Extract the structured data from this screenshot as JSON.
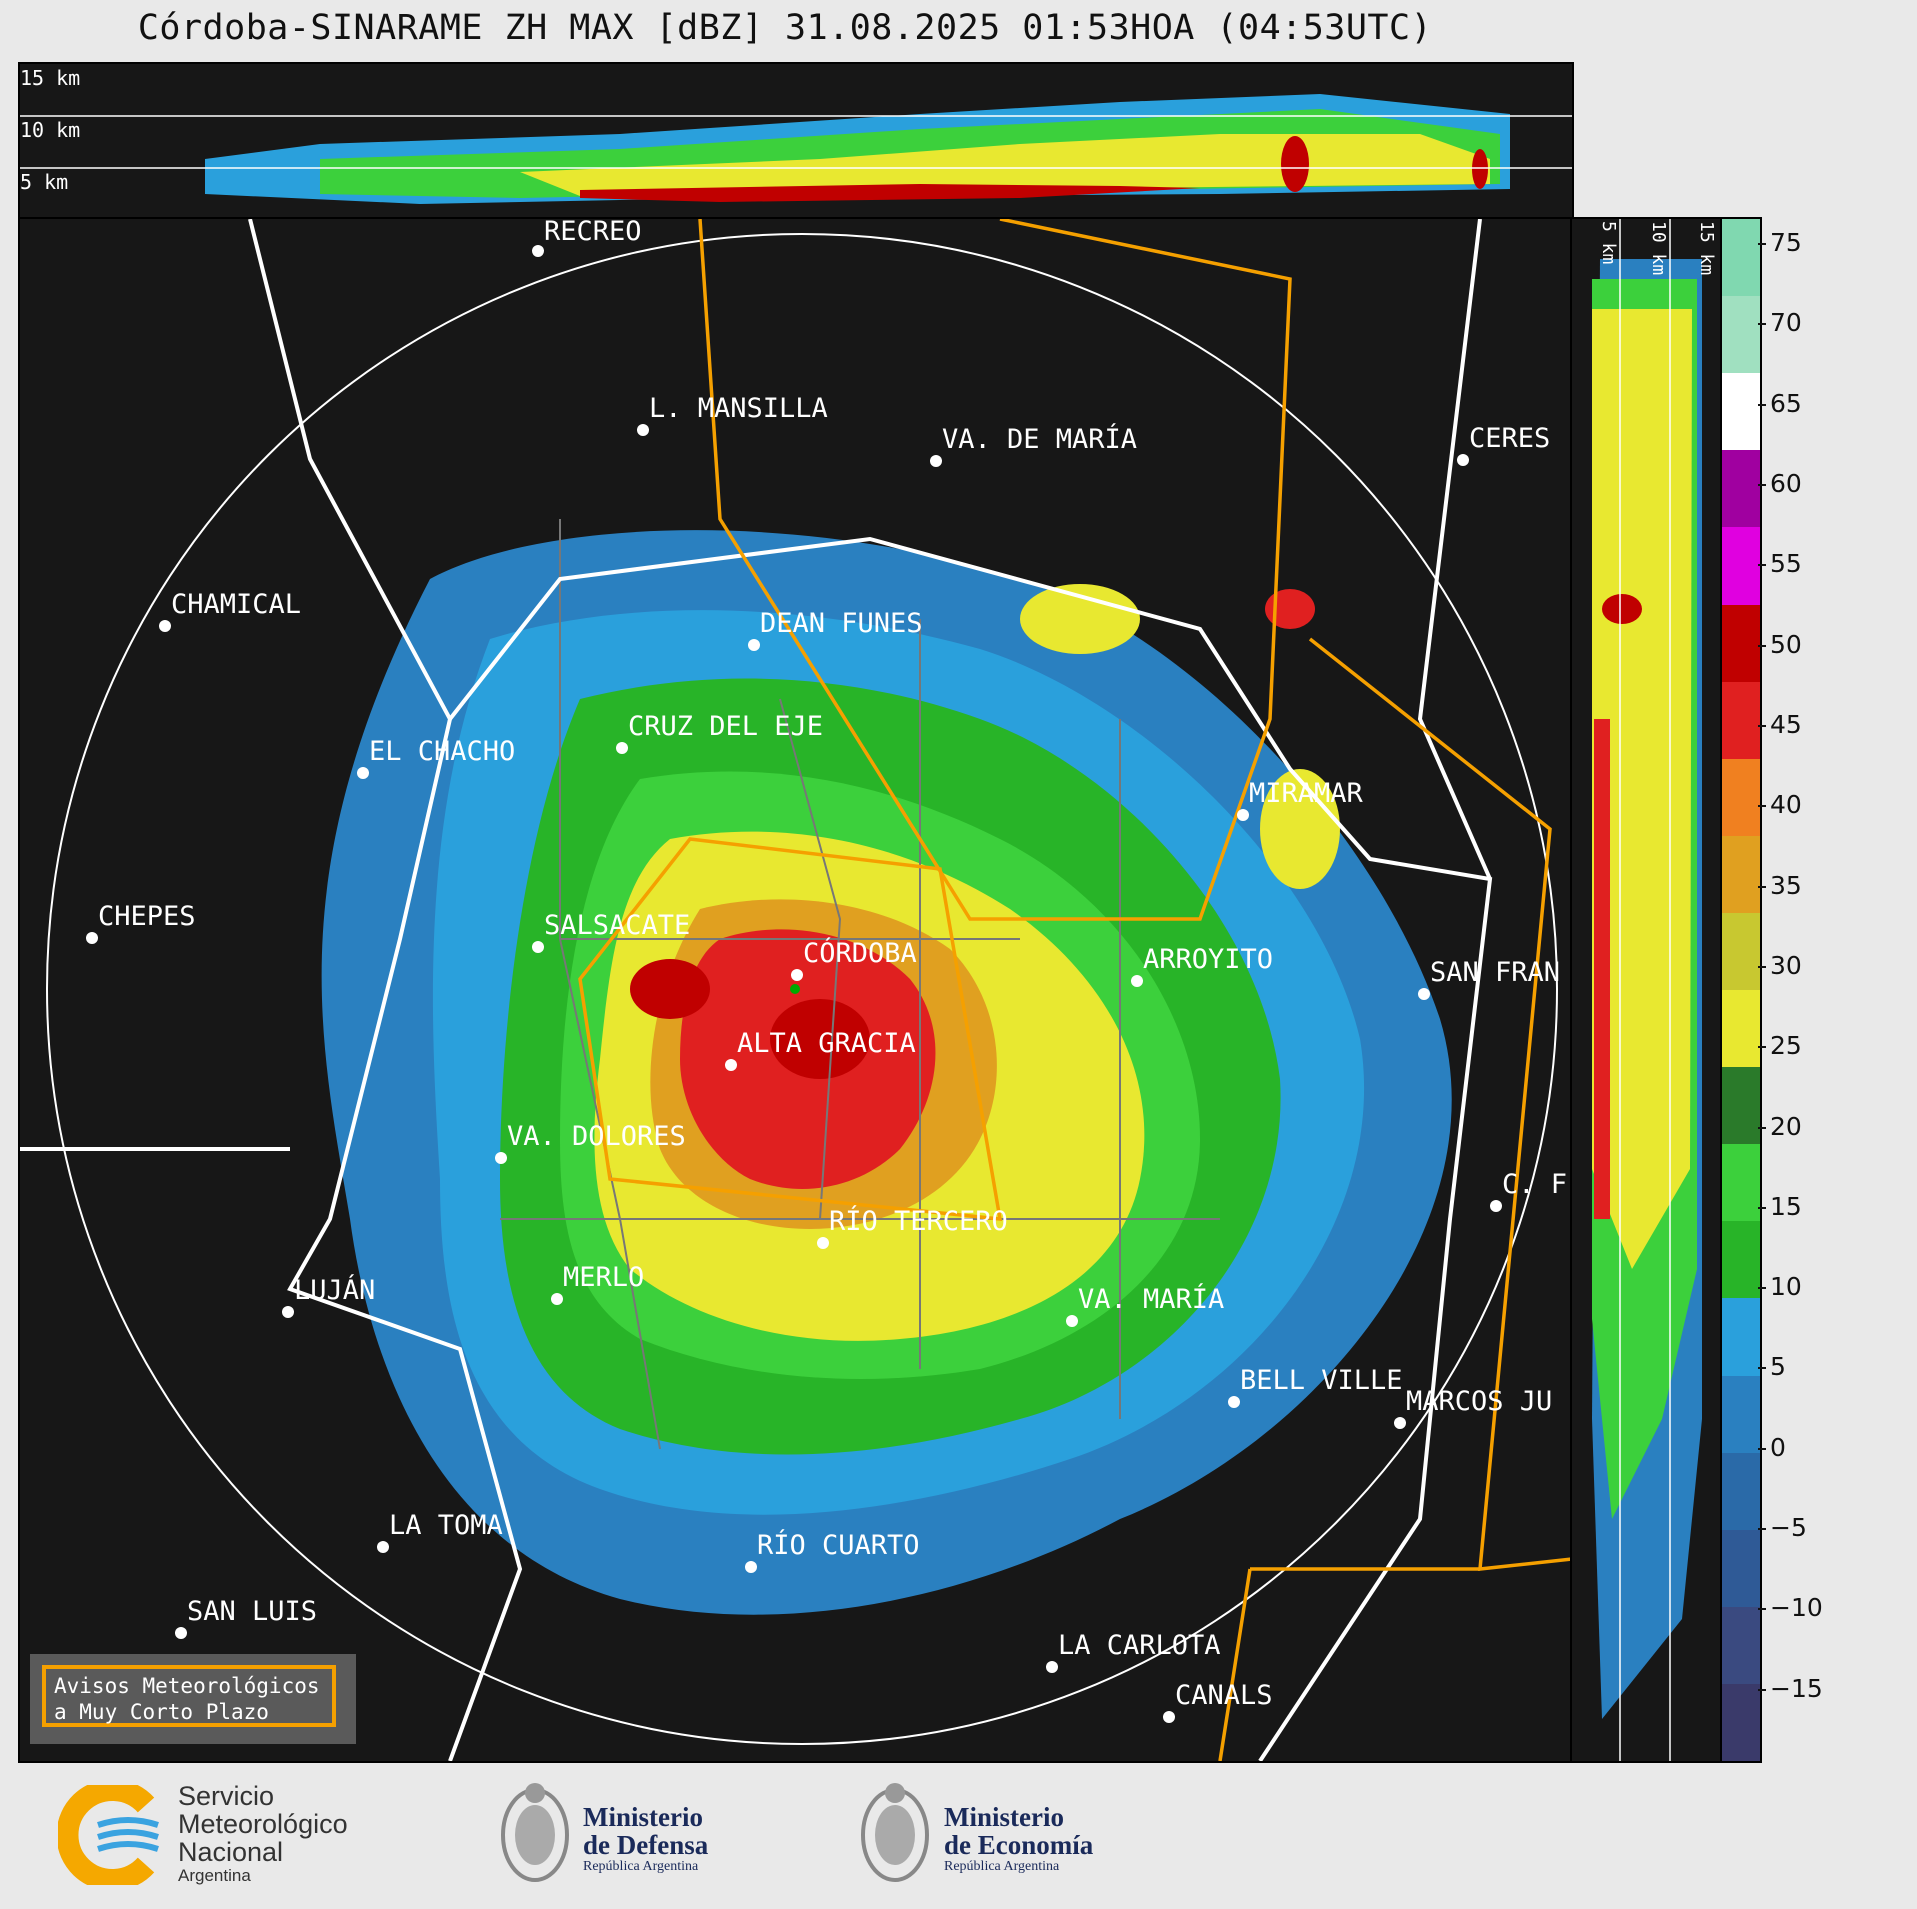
{
  "title": "Córdoba-SINARAME ZH MAX [dBZ] 31.08.2025 01:53HOA (04:53UTC)",
  "top_strip": {
    "heights": [
      "15 km",
      "10 km",
      "5 km"
    ]
  },
  "right_strip": {
    "heights": [
      "5 km",
      "10 km",
      "15 km"
    ]
  },
  "cities": [
    {
      "name": "RECREO"
    },
    {
      "name": "L. MANSILLA"
    },
    {
      "name": "VA. DE MARÍA"
    },
    {
      "name": "CERES"
    },
    {
      "name": "CHAMICAL"
    },
    {
      "name": "DEAN FUNES"
    },
    {
      "name": "CRUZ DEL EJE"
    },
    {
      "name": "EL CHACHO"
    },
    {
      "name": "MIRAMAR"
    },
    {
      "name": "CHEPES"
    },
    {
      "name": "SALSACATE"
    },
    {
      "name": "CÓRDOBA"
    },
    {
      "name": "ARROYITO"
    },
    {
      "name": "SAN FRAN"
    },
    {
      "name": "ALTA GRACIA"
    },
    {
      "name": "VA. DOLORES"
    },
    {
      "name": "C. F"
    },
    {
      "name": "RÍO TERCERO"
    },
    {
      "name": "LUJÁN"
    },
    {
      "name": "MERLO"
    },
    {
      "name": "VA. MARÍA"
    },
    {
      "name": "BELL VILLE"
    },
    {
      "name": "MARCOS JU"
    },
    {
      "name": "LA TOMA"
    },
    {
      "name": "RÍO CUARTO"
    },
    {
      "name": "SAN LUIS"
    },
    {
      "name": "LA CARLOTA"
    },
    {
      "name": "CANALS"
    }
  ],
  "avisos": {
    "line1": "Avisos Meteorológicos",
    "line2": "a Muy Corto Plazo"
  },
  "colorbar": {
    "ticks": [
      "75",
      "70",
      "65",
      "60",
      "55",
      "50",
      "45",
      "40",
      "35",
      "30",
      "25",
      "20",
      "15",
      "10",
      "5",
      "0",
      "−5",
      "−10",
      "−15"
    ],
    "colors": [
      "#3a3a6a",
      "#3a4a80",
      "#2f5a96",
      "#2a6aa8",
      "#2a80c0",
      "#2aa0dc",
      "#28b428",
      "#3cd03c",
      "#2a7a2a",
      "#e8e830",
      "#c8c830",
      "#e0a020",
      "#f08020",
      "#e02020",
      "#c00000",
      "#e000e0",
      "#a000a0",
      "#ffffff",
      "#a0e0c0",
      "#80d8b0"
    ]
  },
  "footer": {
    "smn": {
      "l1": "Servicio",
      "l2": "Meteorológico",
      "l3": "Nacional",
      "l4": "Argentina"
    },
    "defensa": {
      "l1": "Ministerio",
      "l2": "de Defensa",
      "l3": "República Argentina"
    },
    "economia": {
      "l1": "Ministerio",
      "l2": "de Economía",
      "l3": "República Argentina"
    }
  }
}
